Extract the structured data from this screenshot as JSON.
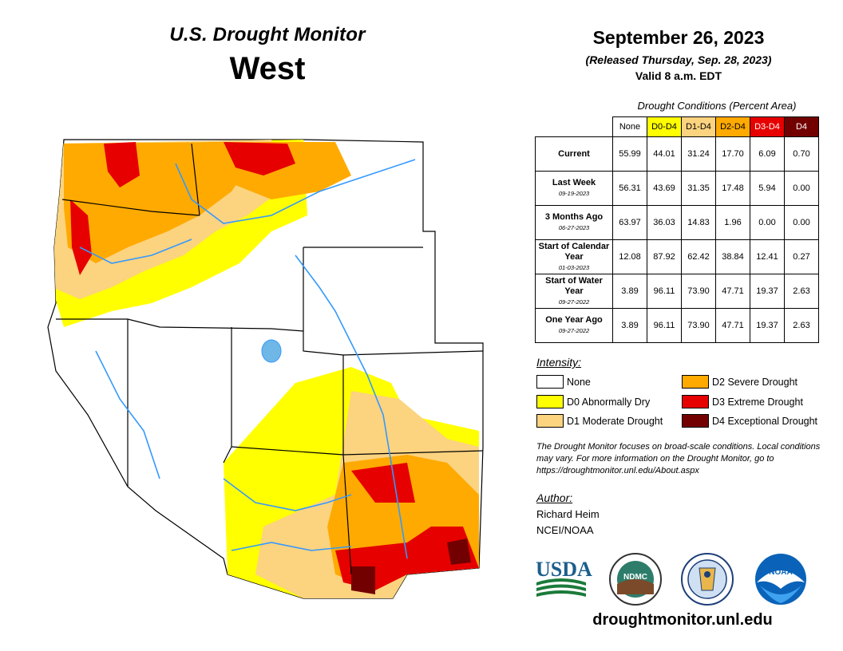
{
  "title": {
    "supertitle": "U.S. Drought Monitor",
    "region": "West"
  },
  "date": {
    "main": "September 26, 2023",
    "released": "(Released Thursday, Sep. 28, 2023)",
    "valid": "Valid 8 a.m. EDT"
  },
  "conditions": {
    "title": "Drought Conditions (Percent Area)",
    "columns": [
      {
        "label": "None",
        "color": "#ffffff",
        "text_color": "#000000"
      },
      {
        "label": "D0-D4",
        "color": "#ffff00",
        "text_color": "#000000"
      },
      {
        "label": "D1-D4",
        "color": "#fcd37f",
        "text_color": "#000000"
      },
      {
        "label": "D2-D4",
        "color": "#ffaa00",
        "text_color": "#000000"
      },
      {
        "label": "D3-D4",
        "color": "#e60000",
        "text_color": "#ffffff"
      },
      {
        "label": "D4",
        "color": "#730000",
        "text_color": "#ffffff"
      }
    ],
    "rows": [
      {
        "label": "Current",
        "date": "",
        "values": [
          "55.99",
          "44.01",
          "31.24",
          "17.70",
          "6.09",
          "0.70"
        ]
      },
      {
        "label": "Last Week",
        "date": "09-19-2023",
        "values": [
          "56.31",
          "43.69",
          "31.35",
          "17.48",
          "5.94",
          "0.00"
        ]
      },
      {
        "label": "3 Months Ago",
        "date": "06-27-2023",
        "values": [
          "63.97",
          "36.03",
          "14.83",
          "1.96",
          "0.00",
          "0.00"
        ]
      },
      {
        "label": "Start of Calendar Year",
        "date": "01-03-2023",
        "values": [
          "12.08",
          "87.92",
          "62.42",
          "38.84",
          "12.41",
          "0.27"
        ]
      },
      {
        "label": "Start of Water Year",
        "date": "09-27-2022",
        "values": [
          "3.89",
          "96.11",
          "73.90",
          "47.71",
          "19.37",
          "2.63"
        ]
      },
      {
        "label": "One Year Ago",
        "date": "09-27-2022",
        "values": [
          "3.89",
          "96.11",
          "73.90",
          "47.71",
          "19.37",
          "2.63"
        ]
      }
    ]
  },
  "intensity": {
    "title": "Intensity:",
    "items": [
      {
        "label": "None",
        "color": "#ffffff"
      },
      {
        "label": "D0 Abnormally Dry",
        "color": "#ffff00"
      },
      {
        "label": "D1 Moderate Drought",
        "color": "#fcd37f"
      },
      {
        "label": "D2 Severe Drought",
        "color": "#ffaa00"
      },
      {
        "label": "D3 Extreme Drought",
        "color": "#e60000"
      },
      {
        "label": "D4 Exceptional Drought",
        "color": "#730000"
      }
    ]
  },
  "note": "The Drought Monitor focuses on broad-scale conditions. Local conditions may vary. For more information on the Drought Monitor, go to https://droughtmonitor.unl.edu/About.aspx",
  "author": {
    "title": "Author:",
    "name": "Richard Heim",
    "org": "NCEI/NOAA"
  },
  "logos": {
    "usda": "USDA",
    "ndmc": "NDMC",
    "noaa": "NOAA"
  },
  "footer_url": "droughtmonitor.unl.edu"
}
